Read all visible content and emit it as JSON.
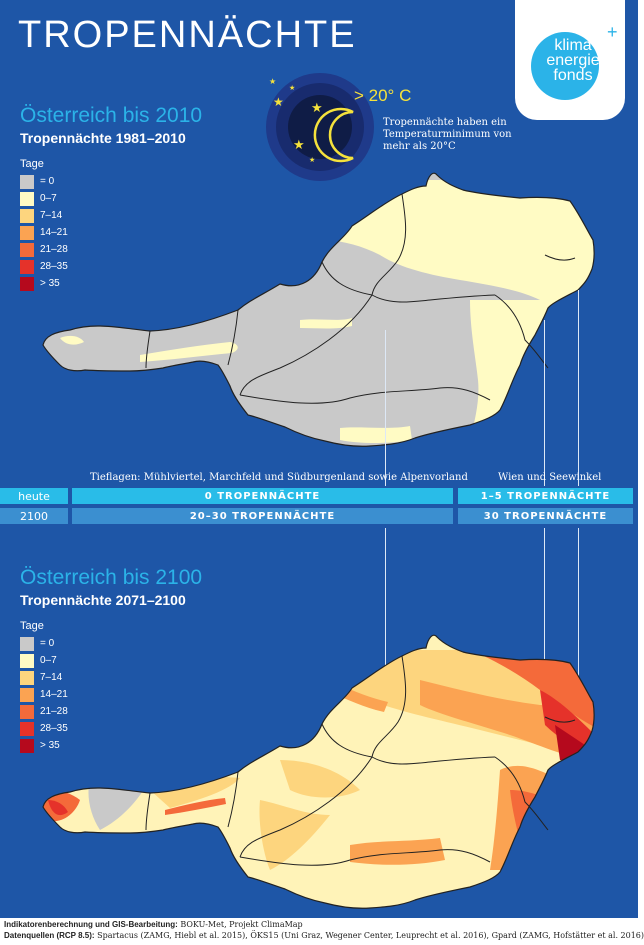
{
  "header": {
    "title": "TROPENNÄCHTE"
  },
  "logo": {
    "line1": "klima",
    "line2": "energie",
    "line3": "fonds",
    "plus": "+"
  },
  "moon_graphic": {
    "temperature": "> 20° C",
    "note": "Tropennächte haben ein Temperaturminimum von mehr als 20°C"
  },
  "colors": {
    "background": "#1e56a7",
    "accent": "#2bb3e8",
    "moon": "#f5e23c"
  },
  "legend": {
    "title": "Tage",
    "items": [
      {
        "label": "= 0",
        "color": "#c9c9c9"
      },
      {
        "label": "0–7",
        "color": "#fffbc4"
      },
      {
        "label": "7–14",
        "color": "#fdd57e"
      },
      {
        "label": "14–21",
        "color": "#fba352"
      },
      {
        "label": "21–28",
        "color": "#f46a3a"
      },
      {
        "label": "28–35",
        "color": "#e5322a"
      },
      {
        "label": "> 35",
        "color": "#b5091d"
      }
    ]
  },
  "map_top": {
    "title": "Österreich bis 2010",
    "subtitle": "Tropennächte 1981–2010"
  },
  "map_bottom": {
    "title": "Österreich bis 2100",
    "subtitle": "Tropennächte 2071–2100"
  },
  "comparison": {
    "header_left": "Tieflagen: Mühlviertel, Marchfeld und Südburgenland sowie Alpenvorland",
    "header_right": "Wien und Seewinkel",
    "rows": [
      {
        "label": "heute",
        "left": "0 TROPENNÄCHTE",
        "right": "1–5 TROPENNÄCHTE"
      },
      {
        "label": "2100",
        "left": "20–30 TROPENNÄCHTE",
        "right": "30 TROPENNÄCHTE"
      }
    ]
  },
  "footer": {
    "line1_label": "Indikatorenberechnung und GIS-Bearbeitung:",
    "line1_text": " BOKU-Met, Projekt ClimaMap",
    "line2_label": "Datenquellen (RCP 8.5):",
    "line2_text": " Spartacus (ZAMG, Hiebl et al. 2015), ÖKS15 (Uni Graz, Wegener Center, Leuprecht et al. 2016), Gpard (ZAMG, Hofstätter et al. 2016)"
  }
}
